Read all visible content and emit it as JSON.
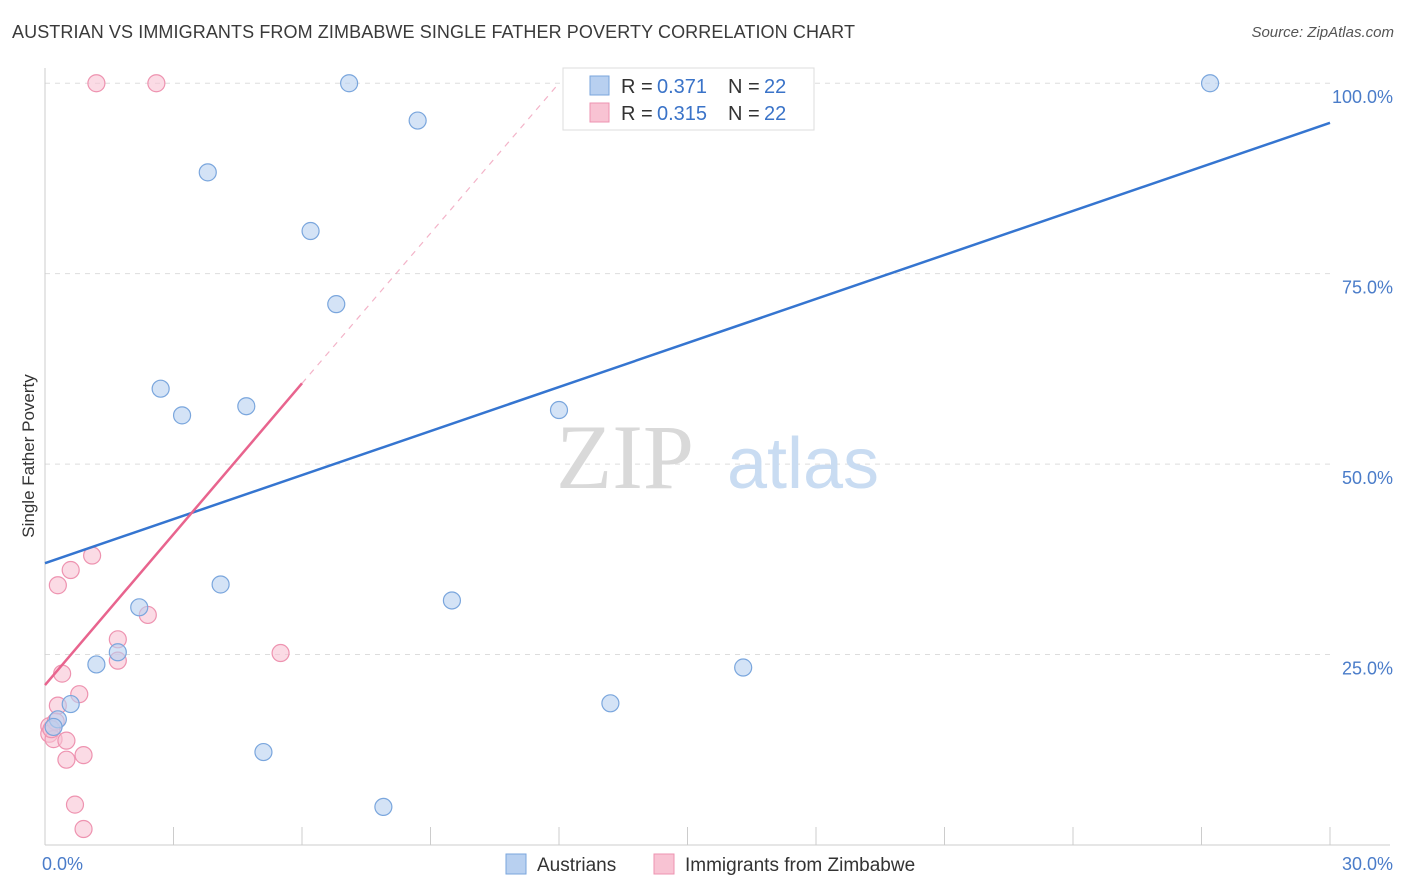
{
  "title": "AUSTRIAN VS IMMIGRANTS FROM ZIMBABWE SINGLE FATHER POVERTY CORRELATION CHART",
  "source": "Source: ZipAtlas.com",
  "watermark": {
    "zip": "ZIP",
    "atlas": "atlas"
  },
  "colors": {
    "blue_fill": "#b8d0f0",
    "blue_stroke": "#7aa6dd",
    "blue_line": "#3575d0",
    "pink_fill": "#f8c3d3",
    "pink_stroke": "#ee93b0",
    "pink_line": "#e8648e",
    "grid": "#dddddd",
    "tick_label": "#4a7cc9"
  },
  "legend": {
    "rows": [
      {
        "r_label": "R =",
        "r_value": "0.371",
        "n_label": "N =",
        "n_value": "22"
      },
      {
        "r_label": "R =",
        "r_value": "0.315",
        "n_label": "N =",
        "n_value": "22"
      }
    ]
  },
  "chart_data": {
    "type": "scatter",
    "ylabel": "Single Father Poverty",
    "xlim": [
      0,
      30
    ],
    "ylim": [
      0,
      102
    ],
    "x_ticks": [
      {
        "value": 0,
        "label": "0.0%"
      },
      {
        "value": 30,
        "label": "30.0%"
      }
    ],
    "y_ticks": [
      {
        "value": 25,
        "label": "25.0%"
      },
      {
        "value": 50,
        "label": "50.0%"
      },
      {
        "value": 75,
        "label": "75.0%"
      },
      {
        "value": 100,
        "label": "100.0%"
      }
    ],
    "grid": true,
    "legend_placement": "top-center",
    "series": [
      {
        "name": "Austrians",
        "points": [
          [
            0.3,
            16.5
          ],
          [
            0.6,
            18.5
          ],
          [
            1.7,
            25.3
          ],
          [
            1.2,
            23.7
          ],
          [
            2.2,
            31.2
          ],
          [
            3.2,
            56.4
          ],
          [
            2.7,
            59.9
          ],
          [
            3.8,
            88.3
          ],
          [
            4.1,
            34.2
          ],
          [
            4.7,
            57.6
          ],
          [
            5.1,
            12.2
          ],
          [
            6.2,
            80.6
          ],
          [
            6.8,
            71.0
          ],
          [
            7.1,
            100.0
          ],
          [
            8.7,
            95.1
          ],
          [
            7.9,
            5.0
          ],
          [
            9.5,
            32.1
          ],
          [
            12.0,
            57.1
          ],
          [
            13.2,
            18.6
          ],
          [
            16.3,
            23.3
          ],
          [
            27.2,
            100.0
          ],
          [
            0.2,
            15.5
          ]
        ],
        "trend": {
          "x": [
            0,
            30
          ],
          "y": [
            37.0,
            94.8
          ]
        }
      },
      {
        "name": "Immigrants from Zimbabwe",
        "points": [
          [
            1.2,
            100.0
          ],
          [
            2.6,
            100.0
          ],
          [
            0.6,
            36.1
          ],
          [
            0.3,
            34.1
          ],
          [
            1.1,
            38.0
          ],
          [
            2.4,
            30.2
          ],
          [
            1.7,
            27.0
          ],
          [
            1.7,
            24.2
          ],
          [
            0.4,
            22.5
          ],
          [
            0.8,
            19.8
          ],
          [
            0.3,
            18.3
          ],
          [
            0.1,
            15.6
          ],
          [
            0.1,
            14.6
          ],
          [
            0.2,
            13.9
          ],
          [
            0.5,
            13.7
          ],
          [
            0.5,
            11.2
          ],
          [
            0.9,
            11.8
          ],
          [
            0.7,
            5.3
          ],
          [
            0.9,
            2.1
          ],
          [
            5.5,
            25.2
          ],
          [
            0.25,
            16.2
          ],
          [
            0.15,
            15.2
          ]
        ],
        "trend": {
          "x": [
            0,
            6.0
          ],
          "y": [
            21.0,
            60.6
          ]
        },
        "trend_extension": {
          "x": [
            6.0,
            12.0
          ],
          "y": [
            60.6,
            100.0
          ]
        }
      }
    ]
  }
}
